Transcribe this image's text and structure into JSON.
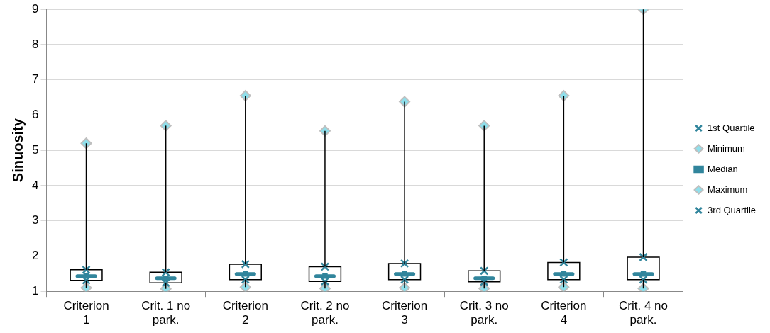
{
  "chart_data": {
    "type": "box",
    "ylabel": "Sinuosity",
    "categories": [
      "Criterion 1",
      "Crit. 1 no park.",
      "Criterion 2",
      "Crit. 2 no park.",
      "Criterion 3",
      "Crit. 3 no park.",
      "Criterion 4",
      "Crit. 4 no park."
    ],
    "boxes": [
      {
        "low": 1.1,
        "q1": 1.31,
        "median": 1.43,
        "q3": 1.61,
        "high": 5.2
      },
      {
        "low": 1.07,
        "q1": 1.24,
        "median": 1.37,
        "q3": 1.54,
        "high": 5.7
      },
      {
        "low": 1.12,
        "q1": 1.33,
        "median": 1.49,
        "q3": 1.77,
        "high": 6.55
      },
      {
        "low": 1.08,
        "q1": 1.28,
        "median": 1.43,
        "q3": 1.7,
        "high": 5.55
      },
      {
        "low": 1.1,
        "q1": 1.33,
        "median": 1.49,
        "q3": 1.79,
        "high": 6.38
      },
      {
        "low": 1.08,
        "q1": 1.27,
        "median": 1.37,
        "q3": 1.58,
        "high": 5.7
      },
      {
        "low": 1.12,
        "q1": 1.33,
        "median": 1.49,
        "q3": 1.82,
        "high": 6.55
      },
      {
        "low": 1.08,
        "q1": 1.33,
        "median": 1.49,
        "q3": 1.97,
        "high": 9.0
      }
    ],
    "series": [
      {
        "name": "1st Quartile",
        "type": "scatter",
        "marker": "cross",
        "color": "#31859c",
        "values": [
          1.31,
          1.24,
          1.33,
          1.28,
          1.33,
          1.27,
          1.33,
          1.33
        ]
      },
      {
        "name": "Minimum",
        "type": "scatter",
        "marker": "diamond",
        "color": "#8fdfeb",
        "values": [
          1.1,
          1.07,
          1.12,
          1.08,
          1.1,
          1.08,
          1.12,
          1.08
        ]
      },
      {
        "name": "Median",
        "type": "scatter",
        "marker": "square",
        "color": "#31859c",
        "values": [
          1.43,
          1.37,
          1.49,
          1.43,
          1.49,
          1.37,
          1.49,
          1.49
        ]
      },
      {
        "name": "Maximum",
        "type": "scatter",
        "marker": "diamond",
        "color": "#8fdfeb",
        "values": [
          5.2,
          5.7,
          6.55,
          5.55,
          6.38,
          5.7,
          6.55,
          9.0
        ]
      },
      {
        "name": "3rd Quartile",
        "type": "scatter",
        "marker": "cross",
        "color": "#31859c",
        "values": [
          1.61,
          1.54,
          1.77,
          1.7,
          1.79,
          1.58,
          1.82,
          1.97
        ]
      }
    ],
    "ylim": [
      1,
      9
    ],
    "yticks": [
      1,
      2,
      3,
      4,
      5,
      6,
      7,
      8,
      9
    ],
    "grid": "y",
    "legend": "right"
  }
}
